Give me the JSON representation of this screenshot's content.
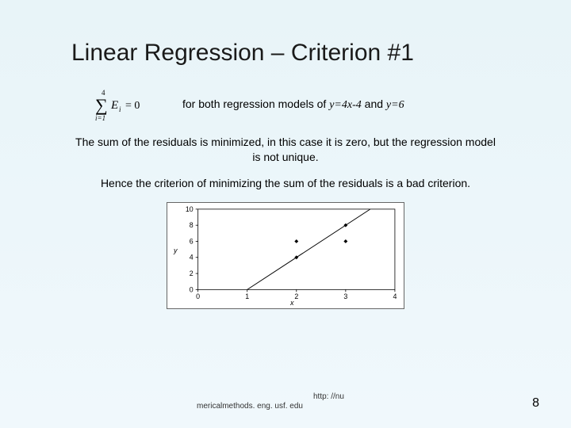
{
  "title": "Linear Regression – Criterion #1",
  "equation": {
    "display": "∑ Eᵢ = 0",
    "upper": "4",
    "lower": "i=1"
  },
  "line1_a": "for both regression models of ",
  "line1_b": "y=4x-4",
  "line1_c": " and ",
  "line1_d": "y=6",
  "body1": "The sum of the residuals is minimized, in this case it is zero, but the regression model is not unique.",
  "body2": "Hence the criterion of minimizing the sum of the residuals is a bad criterion.",
  "chart": {
    "type": "scatter+line",
    "xlim": [
      0,
      4
    ],
    "ylim": [
      0,
      10
    ],
    "xticks": [
      0,
      1,
      2,
      3,
      4
    ],
    "yticks": [
      0,
      2,
      4,
      6,
      8,
      10
    ],
    "xlabel": "x",
    "ylabel": "y",
    "points": [
      {
        "x": 2.0,
        "y": 6.0
      },
      {
        "x": 3.0,
        "y": 6.0
      },
      {
        "x": 2.0,
        "y": 4.0
      },
      {
        "x": 3.0,
        "y": 8.0
      }
    ],
    "line": {
      "x1": 1.0,
      "y1": 0.0,
      "x2": 3.5,
      "y2": 10.0
    },
    "point_color": "#000000",
    "line_color": "#000000",
    "line_width": 1,
    "background_color": "#ffffff",
    "frame_color": "#000000",
    "tick_fontsize": 9
  },
  "footer": {
    "url_top": "http: //nu",
    "url_bottom": "mericalmethods. eng. usf. edu"
  },
  "page_number": "8"
}
